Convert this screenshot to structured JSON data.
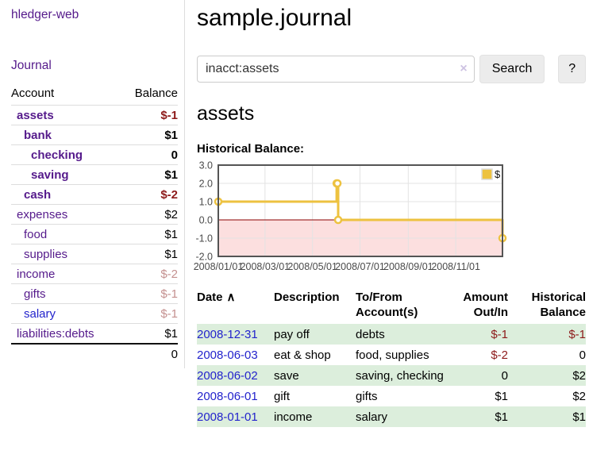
{
  "colors": {
    "link_purple": "#551a8b",
    "link_blue": "#2323cc",
    "negative_strong": "#8d1a1a",
    "negative_dim": "#c4908f",
    "row_green": "#dceedc",
    "chart_series": "#edc240",
    "chart_negative_fill": "#fcdfdf",
    "chart_zero_line": "#8b0000",
    "chart_border": "#545454",
    "chart_grid": "#e3e3e3"
  },
  "sidebar": {
    "brand": "hledger-web",
    "journal_link": "Journal",
    "accounts": {
      "header_account": "Account",
      "header_balance": "Balance",
      "rows": [
        {
          "name": "assets",
          "depth": 1,
          "balance": "$-1",
          "bold": true,
          "balance_style": "neg-strong",
          "link_style": "purple"
        },
        {
          "name": "bank",
          "depth": 2,
          "balance": "$1",
          "bold": true,
          "balance_style": "normal",
          "link_style": "purple"
        },
        {
          "name": "checking",
          "depth": 3,
          "balance": "0",
          "bold": true,
          "balance_style": "normal",
          "link_style": "purple"
        },
        {
          "name": "saving",
          "depth": 3,
          "balance": "$1",
          "bold": true,
          "balance_style": "normal",
          "link_style": "purple"
        },
        {
          "name": "cash",
          "depth": 2,
          "balance": "$-2",
          "bold": true,
          "balance_style": "neg-strong",
          "link_style": "purple"
        },
        {
          "name": "expenses",
          "depth": 1,
          "balance": "$2",
          "bold": false,
          "balance_style": "normal",
          "link_style": "purple"
        },
        {
          "name": "food",
          "depth": 2,
          "balance": "$1",
          "bold": false,
          "balance_style": "normal",
          "link_style": "purple"
        },
        {
          "name": "supplies",
          "depth": 2,
          "balance": "$1",
          "bold": false,
          "balance_style": "normal",
          "link_style": "purple"
        },
        {
          "name": "income",
          "depth": 1,
          "balance": "$-2",
          "bold": false,
          "balance_style": "neg-dim",
          "link_style": "purple"
        },
        {
          "name": "gifts",
          "depth": 2,
          "balance": "$-1",
          "bold": false,
          "balance_style": "neg-dim",
          "link_style": "purple"
        },
        {
          "name": "salary",
          "depth": 2,
          "balance": "$-1",
          "bold": false,
          "balance_style": "neg-dim",
          "link_style": "blue"
        },
        {
          "name": "liabilities:debts",
          "depth": 1,
          "balance": "$1",
          "bold": false,
          "balance_style": "normal",
          "link_style": "purple"
        }
      ],
      "total": "0"
    }
  },
  "main": {
    "title": "sample.journal",
    "search": {
      "value": "inacct:assets",
      "clear_icon": "×",
      "button_label": "Search",
      "help_label": "?"
    },
    "account_heading": "assets"
  },
  "chart_data": {
    "type": "line",
    "step": true,
    "title": "Historical Balance:",
    "xlim": [
      "2008-01-01",
      "2008-12-31"
    ],
    "ylim": [
      -2,
      3
    ],
    "x_ticks": [
      "2008/01/01",
      "2008/03/01",
      "2008/05/01",
      "2008/07/01",
      "2008/09/01",
      "2008/11/01"
    ],
    "y_ticks": [
      [
        3,
        "3.0"
      ],
      [
        2,
        "2.0"
      ],
      [
        1,
        "1.0"
      ],
      [
        0,
        "0.0"
      ],
      [
        -1,
        "-1.0"
      ],
      [
        -2,
        "-2.0"
      ]
    ],
    "legend": {
      "label": "$",
      "position": "top-right"
    },
    "grid": true,
    "negative_region_shaded": true,
    "series": [
      {
        "name": "$",
        "color": "#edc240",
        "points": [
          [
            "2008-01-01",
            1
          ],
          [
            "2008-06-01",
            2
          ],
          [
            "2008-06-02",
            2
          ],
          [
            "2008-06-03",
            0
          ],
          [
            "2008-12-31",
            -1
          ]
        ]
      }
    ]
  },
  "transactions": {
    "columns": [
      {
        "lines": [
          "Date"
        ],
        "sort_indicator": "∧",
        "align": "left"
      },
      {
        "lines": [
          "Description"
        ],
        "align": "left"
      },
      {
        "lines": [
          "To/From",
          "Account(s)"
        ],
        "align": "left"
      },
      {
        "lines": [
          "Amount",
          "Out/In"
        ],
        "align": "right"
      },
      {
        "lines": [
          "Historical",
          "Balance"
        ],
        "align": "right"
      }
    ],
    "rows": [
      {
        "date": "2008-12-31",
        "description": "pay off",
        "accounts": "debts",
        "amount": "$-1",
        "amount_negative": true,
        "balance": "$-1",
        "balance_negative": true
      },
      {
        "date": "2008-06-03",
        "description": "eat & shop",
        "accounts": "food, supplies",
        "amount": "$-2",
        "amount_negative": true,
        "balance": "0",
        "balance_negative": false
      },
      {
        "date": "2008-06-02",
        "description": "save",
        "accounts": "saving, checking",
        "amount": "0",
        "amount_negative": false,
        "balance": "$2",
        "balance_negative": false
      },
      {
        "date": "2008-06-01",
        "description": "gift",
        "accounts": "gifts",
        "amount": "$1",
        "amount_negative": false,
        "balance": "$2",
        "balance_negative": false
      },
      {
        "date": "2008-01-01",
        "description": "income",
        "accounts": "salary",
        "amount": "$1",
        "amount_negative": false,
        "balance": "$1",
        "balance_negative": false
      }
    ]
  }
}
